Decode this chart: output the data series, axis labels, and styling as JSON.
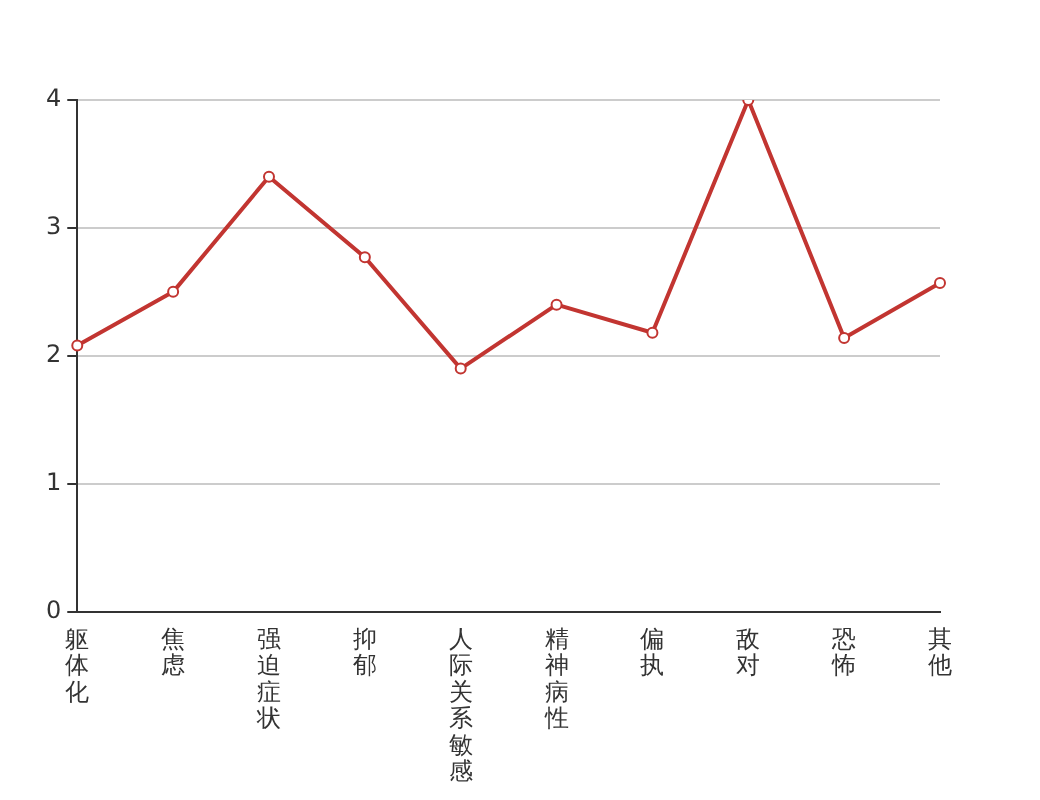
{
  "chart_data": {
    "type": "line",
    "categories": [
      "躯体化",
      "焦虑",
      "强迫症状",
      "抑郁",
      "人际关系敏感",
      "精神病性",
      "偏执",
      "敌对",
      "恐怖",
      "其他"
    ],
    "series": [
      {
        "color": "#c23531",
        "values": [
          2.08,
          2.5,
          3.4,
          2.77,
          1.9,
          2.4,
          2.18,
          4.0,
          2.14,
          2.57
        ]
      }
    ],
    "ylim": [
      0,
      4
    ],
    "yticks": [
      0,
      1,
      2,
      3,
      4
    ],
    "grid": "y",
    "marker": "circle",
    "line_style": "solid",
    "legend": false
  }
}
